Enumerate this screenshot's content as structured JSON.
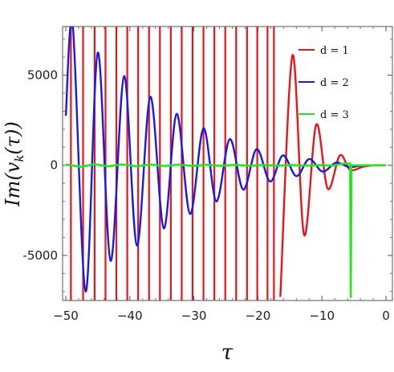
{
  "chart_data": {
    "type": "line",
    "title": "",
    "xlabel": "τ",
    "ylabel": "Im(v_k(τ))",
    "xlim": [
      -50.5,
      1
    ],
    "ylim": [
      -7500,
      7700
    ],
    "xticks": [
      -50,
      -40,
      -30,
      -20,
      -10,
      0
    ],
    "xtick_labels": [
      "−50",
      "−40",
      "−30",
      "−20",
      "−10",
      "0"
    ],
    "yticks": [
      -5000,
      0,
      5000
    ],
    "ytick_labels": [
      "-5000",
      "0",
      "5000"
    ],
    "grid": false,
    "legend_position": "top-right",
    "series": [
      {
        "name": "d = 1",
        "color": "#e8161b",
        "description": "very fast oscillation clipped beyond the frame for tau < -17, then damped oscillation",
        "clipped_crossings": [
          -49.2,
          -47.3,
          -45.5,
          -43.8,
          -42.1,
          -40.4,
          -38.7,
          -37.0,
          -35.3,
          -33.6,
          -31.9,
          -30.2,
          -28.5,
          -26.8,
          -25.1,
          -23.4,
          -21.7,
          -20.1,
          -18.5,
          -17.5
        ],
        "x": [
          -16.5,
          -14.6,
          -12.8,
          -10.9,
          -9.1,
          -7.2,
          -5.6,
          -3.6,
          -2.0,
          0.0
        ],
        "y": [
          -7300,
          6100,
          -3850,
          2250,
          -1300,
          550,
          -250,
          -80,
          0,
          0
        ]
      },
      {
        "name": "d = 2",
        "color": "#1a1ae8",
        "description": "damped oscillation",
        "x": [
          -50.0,
          -48.9,
          -46.9,
          -45.0,
          -43.0,
          -40.9,
          -38.9,
          -36.8,
          -34.7,
          -32.7,
          -30.6,
          -28.5,
          -26.5,
          -24.4,
          -22.3,
          -20.2,
          -18.1,
          -16.1,
          -14.0,
          -12.0,
          -9.9,
          -7.8,
          -5.7,
          -3.6,
          -1.5,
          0.0
        ],
        "y": [
          2750,
          7700,
          -7000,
          6250,
          -5300,
          4950,
          -4450,
          3800,
          -3500,
          2850,
          -2700,
          2050,
          -2000,
          1450,
          -1350,
          900,
          -900,
          550,
          -600,
          350,
          -350,
          150,
          -100,
          0,
          0,
          0
        ]
      },
      {
        "name": "d = 3",
        "color": "#22e81a",
        "description": "near-zero oscillation with a spike near tau = -5.5",
        "x": [
          -50.0,
          -47.6,
          -45.5,
          -43.4,
          -41.2,
          -39.0,
          -36.8,
          -34.6,
          -32.4,
          -30.2,
          -28.0,
          -25.8,
          -23.6,
          -21.4,
          -19.2,
          -17.0,
          -14.8,
          -12.6,
          -10.4,
          -8.2,
          -6.6,
          -5.6,
          -5.5,
          -5.4,
          -4.0,
          -2.0,
          0.0
        ],
        "y": [
          40,
          -80,
          60,
          -60,
          50,
          -50,
          40,
          -40,
          35,
          -35,
          30,
          -30,
          25,
          -25,
          20,
          -20,
          15,
          -15,
          10,
          -10,
          100,
          100,
          -7300,
          0,
          0,
          0,
          0
        ]
      }
    ]
  }
}
